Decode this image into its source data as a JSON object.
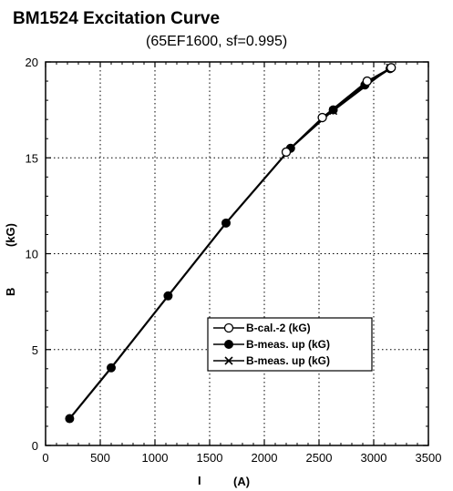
{
  "chart_data": {
    "type": "line",
    "title": "BM1524  Excitation Curve",
    "subtitle": "(65EF1600,  sf=0.995)",
    "xlabel_symbol": "I",
    "xlabel_unit": "(A)",
    "ylabel_symbol": "B",
    "ylabel_unit": "(kG)",
    "xlim": [
      0,
      3500
    ],
    "ylim": [
      0,
      20
    ],
    "xticks": [
      0,
      500,
      1000,
      1500,
      2000,
      2500,
      3000,
      3500
    ],
    "yticks": [
      0,
      5,
      10,
      15,
      20
    ],
    "grid": true,
    "legend_position": "lower-right",
    "series": [
      {
        "name": "B-cal.-2 (kG)",
        "marker": "open-circle",
        "x": [
          2200,
          2530,
          2940,
          3160
        ],
        "y": [
          15.3,
          17.1,
          19.0,
          19.7
        ]
      },
      {
        "name": "B-meas. up (kG)",
        "marker": "filled-circle",
        "x": [
          220,
          600,
          1120,
          1650,
          2240,
          2630,
          2920,
          3150
        ],
        "y": [
          1.4,
          4.05,
          7.8,
          11.6,
          15.5,
          17.5,
          18.8,
          19.65
        ]
      },
      {
        "name": "B-meas. up (kG)",
        "marker": "x",
        "x": [
          2630,
          3150
        ],
        "y": [
          17.45,
          19.7
        ]
      }
    ]
  }
}
